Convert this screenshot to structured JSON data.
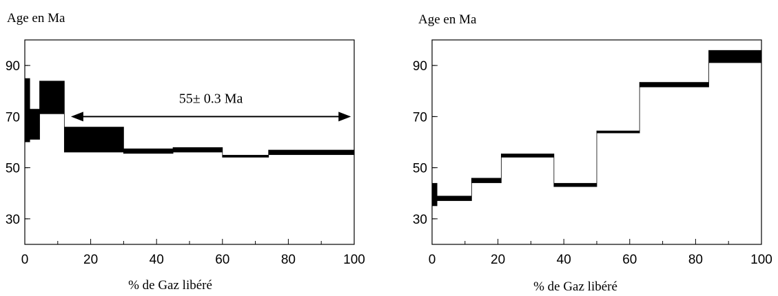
{
  "chart_data": [
    {
      "type": "step",
      "ylabel": "Age en Ma",
      "xlabel": "% de Gaz libéré",
      "xlim": [
        0,
        100
      ],
      "ylim": [
        20,
        100
      ],
      "xticks": [
        0,
        20,
        40,
        60,
        80,
        100
      ],
      "yticks": [
        30,
        50,
        70,
        90
      ],
      "steps": [
        {
          "x0": 0,
          "x1": 1.5,
          "y_low": 60,
          "y_high": 85
        },
        {
          "x0": 1.5,
          "x1": 4.5,
          "y_low": 61,
          "y_high": 73
        },
        {
          "x0": 4.5,
          "x1": 12,
          "y_low": 71,
          "y_high": 84
        },
        {
          "x0": 12,
          "x1": 30,
          "y_low": 56,
          "y_high": 66
        },
        {
          "x0": 30,
          "x1": 45,
          "y_low": 55.5,
          "y_high": 57.5
        },
        {
          "x0": 45,
          "x1": 60,
          "y_low": 56,
          "y_high": 58
        },
        {
          "x0": 60,
          "x1": 74,
          "y_low": 54,
          "y_high": 55
        },
        {
          "x0": 74,
          "x1": 100,
          "y_low": 55,
          "y_high": 57
        }
      ],
      "annotation": {
        "text": "55± 0.3 Ma",
        "x_from": 14,
        "x_to": 99,
        "y": 70
      }
    },
    {
      "type": "step",
      "ylabel": "Age en Ma",
      "xlabel": "% de Gaz libéré",
      "xlim": [
        0,
        100
      ],
      "ylim": [
        20,
        100
      ],
      "xticks": [
        0,
        20,
        40,
        60,
        80,
        100
      ],
      "yticks": [
        30,
        50,
        70,
        90
      ],
      "steps": [
        {
          "x0": 0,
          "x1": 1.5,
          "y_low": 35,
          "y_high": 44
        },
        {
          "x0": 1.5,
          "x1": 12,
          "y_low": 37,
          "y_high": 39
        },
        {
          "x0": 12,
          "x1": 21,
          "y_low": 44,
          "y_high": 46
        },
        {
          "x0": 21,
          "x1": 37,
          "y_low": 54,
          "y_high": 55.5
        },
        {
          "x0": 37,
          "x1": 50,
          "y_low": 42.5,
          "y_high": 44
        },
        {
          "x0": 50,
          "x1": 63,
          "y_low": 63.5,
          "y_high": 64.5
        },
        {
          "x0": 63,
          "x1": 84,
          "y_low": 81.5,
          "y_high": 83.5
        },
        {
          "x0": 84,
          "x1": 100,
          "y_low": 91,
          "y_high": 96
        }
      ]
    }
  ]
}
